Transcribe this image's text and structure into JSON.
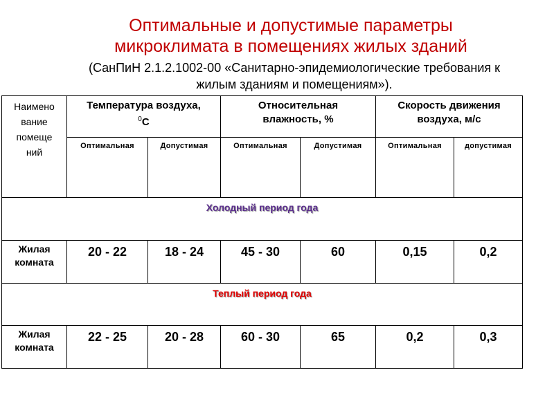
{
  "title": {
    "line1": "Оптимальные и допустимые параметры",
    "line2": "микроклимата в помещениях жилых зданий"
  },
  "subtitle": {
    "line1": "(СанПиН 2.1.2.1002-00 «Санитарно-эпидемиологические требования к",
    "line2": "жилым зданиям и помещениям»)."
  },
  "table": {
    "col_room": "Наимено вание помеще ний",
    "col_temp": "Температура воздуха,",
    "col_temp_unit_sup": "0",
    "col_temp_unit": "С",
    "col_hum": "Относительная влажность, %",
    "col_speed": "Скорость движения воздуха, м/с",
    "sub": [
      "Оптимальная",
      "Допустимая",
      "Оптимальная",
      "Допустимая",
      "Оптимальная",
      "допустимая"
    ],
    "cold_period": "Холодный период года",
    "cold_color": "#5b2f8c",
    "warm_period": "Теплый период года",
    "warm_color": "#e00000",
    "rows": [
      {
        "room": "Жилая комната",
        "values": [
          "20 - 22",
          "18 - 24",
          "45 - 30",
          "60",
          "0,15",
          "0,2"
        ]
      },
      {
        "room": "Жилая комната",
        "values": [
          "22 - 25",
          "20 - 28",
          "60 - 30",
          "65",
          "0,2",
          "0,3"
        ]
      }
    ]
  }
}
